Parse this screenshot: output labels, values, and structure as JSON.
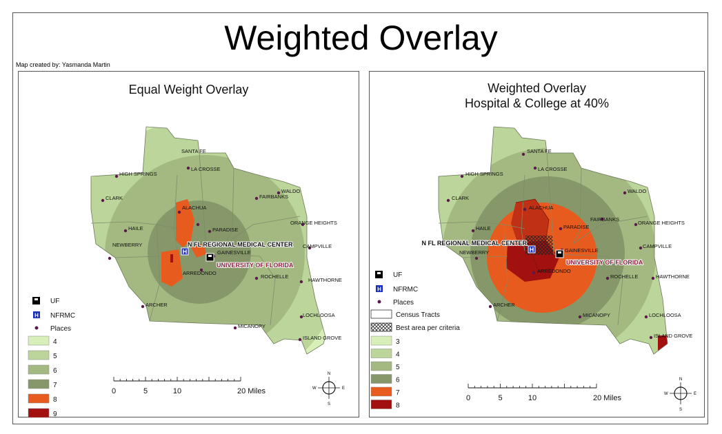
{
  "main_title": "Weighted Overlay",
  "credit": "Map created by: Yasmanda Martin",
  "left_panel": {
    "title": "Equal Weight Overlay",
    "legend": {
      "symbols": [
        "UF",
        "NFRMC",
        "Places"
      ],
      "classes": [
        {
          "label": "4",
          "color": "#d9efb9"
        },
        {
          "label": "5",
          "color": "#bcd59a"
        },
        {
          "label": "6",
          "color": "#a4b982"
        },
        {
          "label": "7",
          "color": "#869869"
        },
        {
          "label": "8",
          "color": "#e85b1e"
        },
        {
          "label": "9",
          "color": "#a31010"
        }
      ]
    },
    "scale": {
      "ticks": [
        "0",
        "5",
        "10",
        "20 Miles"
      ]
    }
  },
  "right_panel": {
    "title_line1": "Weighted Overlay",
    "title_line2": "Hospital & College at 40%",
    "legend": {
      "symbols": [
        "UF",
        "NFRMC",
        "Places",
        "Census Tracts",
        "Best area per criteria"
      ],
      "classes": [
        {
          "label": "3",
          "color": "#d9efb9"
        },
        {
          "label": "4",
          "color": "#bcd59a"
        },
        {
          "label": "5",
          "color": "#a4b982"
        },
        {
          "label": "6",
          "color": "#869869"
        },
        {
          "label": "7",
          "color": "#e85b1e"
        },
        {
          "label": "8",
          "color": "#a31010"
        }
      ]
    },
    "scale": {
      "ticks": [
        "0",
        "5",
        "10",
        "20 Miles"
      ]
    }
  },
  "places": {
    "santa_fe": "SANTA FE",
    "high_springs": "HIGH SPRINGS",
    "la_crosse": "LA CROSSE",
    "waldo": "WALDO",
    "clark": "CLARK",
    "alachua": "ALACHUA",
    "fairbanks": "FAIRBANKS",
    "orange_heights": "ORANGE HEIGHTS",
    "haile": "HAILE",
    "paradise": "PARADISE",
    "newberry": "NEWBERRY",
    "gainesville": "GAINESVILLE",
    "campville": "CAMPVILLE",
    "arredondo": "ARREDONDO",
    "rochelle": "ROCHELLE",
    "hawthorne": "HAWTHORNE",
    "archer": "ARCHER",
    "lochloosa": "LOCHLOOSA",
    "micanopy": "MICANOPY",
    "island_grove": "ISLAND GROVE",
    "hospital": "N FL REGIONAL MEDICAL CENTER",
    "university": "UNIVERSITY OF FLORIDA"
  },
  "icons": {
    "uf": "school-icon",
    "hospital": "hospital-H-icon",
    "north_arrow": "compass-icon"
  },
  "compass": {
    "n": "N",
    "s": "S",
    "e": "E",
    "w": "W"
  }
}
